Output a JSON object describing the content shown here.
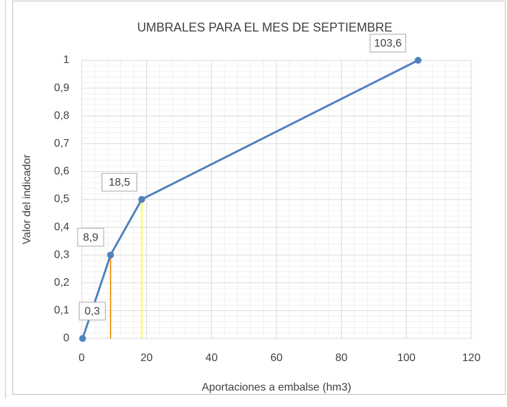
{
  "chart_data": {
    "type": "line",
    "title": "UMBRALES PARA EL MES DE SEPTIEMBRE",
    "x_label": "Aportaciones a embalse (hm3)",
    "y_label": "Valor del indicador",
    "x": [
      0.3,
      8.9,
      18.5,
      103.6
    ],
    "series": [
      {
        "color": "#4f81bd",
        "values": [
          0,
          0.3,
          0.5,
          1
        ]
      }
    ],
    "x_labels": [
      "0,3",
      "8,9",
      "18,5",
      "103,6"
    ],
    "drop_line_colors": [
      null,
      "#ed9a1c",
      "#ffff33",
      null
    ],
    "xlim": [
      0,
      120
    ],
    "xticks": [
      0,
      20,
      40,
      60,
      80,
      100,
      120
    ],
    "ylim": [
      0,
      1
    ],
    "yticks": [
      0,
      {
        "value": 0.1,
        "label": "0,1"
      },
      {
        "value": 0.2,
        "label": "0,2"
      },
      {
        "value": 0.3,
        "label": "0,3"
      },
      {
        "value": 0.4,
        "label": "0,4"
      },
      {
        "value": 0.5,
        "label": "0,5"
      },
      {
        "value": 0.6,
        "label": "0,6"
      },
      {
        "value": 0.7,
        "label": "0,7"
      },
      {
        "value": 0.8,
        "label": "0,8"
      },
      {
        "value": 0.9,
        "label": "0,9"
      },
      1
    ],
    "grid": true,
    "minor_grid": true
  }
}
